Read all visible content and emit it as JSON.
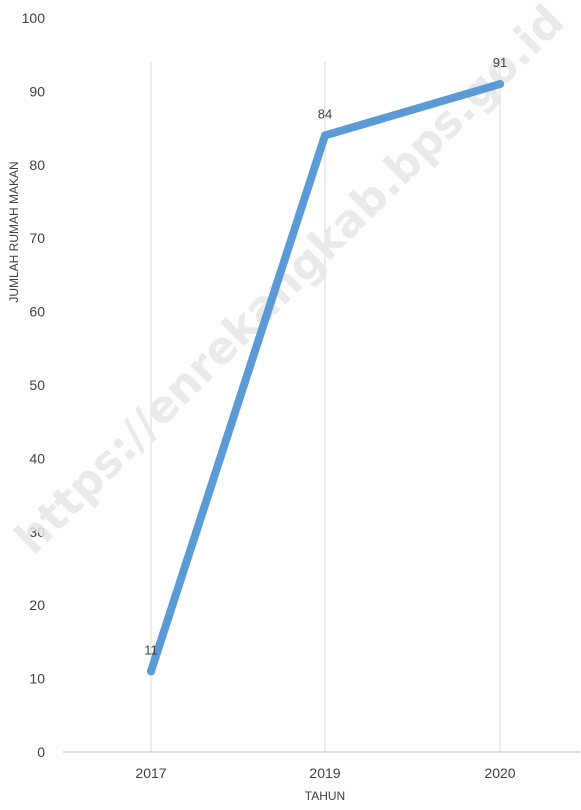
{
  "watermark": "https://enrekangkab.bps.go.id",
  "chart_data": {
    "type": "line",
    "title": "",
    "xlabel": "TAHUN",
    "ylabel": "JUMLAH RUMAH MAKAN",
    "categories": [
      "2017",
      "2019",
      "2020"
    ],
    "series": [
      {
        "values": [
          11,
          84,
          91
        ],
        "color": "#5b9bd5"
      }
    ],
    "ylim": [
      0,
      100
    ],
    "yticks": [
      "0",
      "10",
      "20",
      "30",
      "40",
      "50",
      "60",
      "70",
      "80",
      "90",
      "100"
    ],
    "data_labels": [
      "11",
      "84",
      "91"
    ],
    "grid": "vertical",
    "legend": "none"
  }
}
